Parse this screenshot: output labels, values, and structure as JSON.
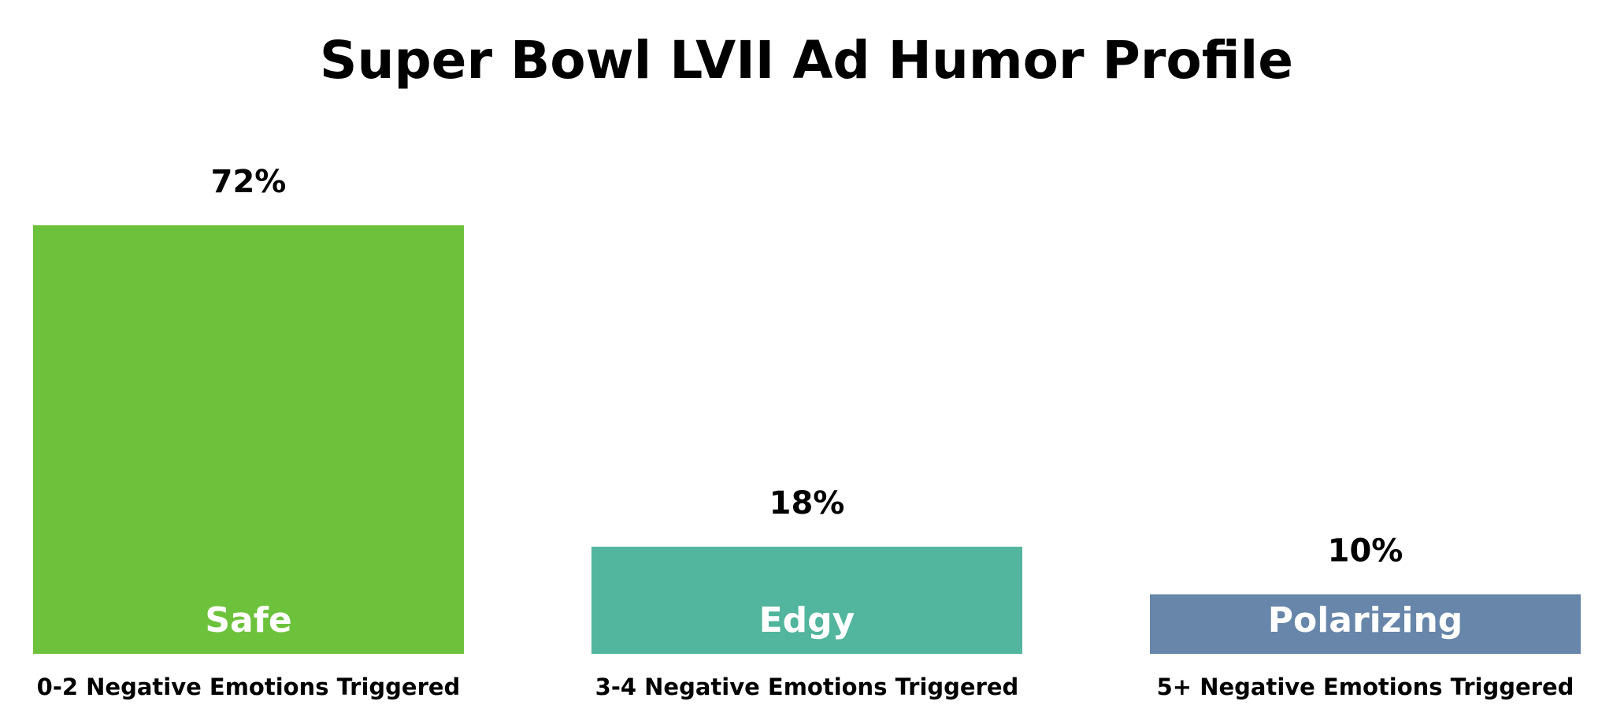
{
  "chart_data": {
    "type": "bar",
    "title": "Super Bowl LVII Ad Humor Profile",
    "categories": [
      "0-2 Negative Emotions Triggered",
      "3-4 Negative Emotions Triggered",
      "5+ Negative Emotions Triggered"
    ],
    "bar_labels": [
      "Safe",
      "Edgy",
      "Polarizing"
    ],
    "values": [
      72,
      18,
      10
    ],
    "value_labels": [
      "72%",
      "18%",
      "10%"
    ],
    "colors": [
      "#6DC23B",
      "#52B59D",
      "#6786A9"
    ],
    "xlabel": "",
    "ylabel": "",
    "ylim": [
      0,
      72
    ],
    "grid": false,
    "legend": "none"
  }
}
